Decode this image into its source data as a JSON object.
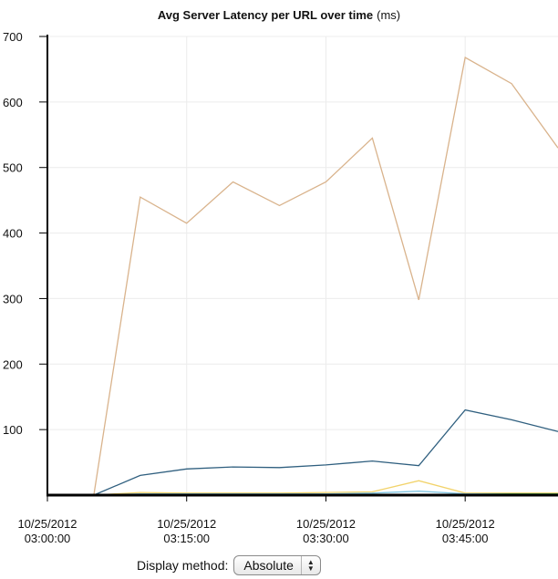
{
  "chart_data": {
    "type": "line",
    "title": "Avg Server Latency per URL over time",
    "title_unit": "(ms)",
    "xlabel": "",
    "ylabel": "",
    "ylim": [
      0,
      700
    ],
    "y_ticks": [
      100,
      200,
      300,
      400,
      500,
      600,
      700
    ],
    "x_ticks": [
      {
        "date": "10/25/2012",
        "time": "03:00:00"
      },
      {
        "date": "10/25/2012",
        "time": "03:15:00"
      },
      {
        "date": "10/25/2012",
        "time": "03:30:00"
      },
      {
        "date": "10/25/2012",
        "time": "03:45:00"
      }
    ],
    "x_start": "2012-10-25T03:00:00",
    "x_end": "2012-10-25T03:55:00",
    "grid": true,
    "x": [
      "03:05:00",
      "03:10:00",
      "03:15:00",
      "03:20:00",
      "03:25:00",
      "03:30:00",
      "03:35:00",
      "03:40:00",
      "03:45:00",
      "03:50:00",
      "03:55:00"
    ],
    "series": [
      {
        "color": "#d9b38c",
        "values": [
          0,
          455,
          415,
          478,
          442,
          478,
          545,
          298,
          668,
          628,
          530
        ]
      },
      {
        "color": "#2f5f7f",
        "values": [
          0,
          30,
          40,
          43,
          42,
          46,
          52,
          45,
          130,
          115,
          97
        ]
      },
      {
        "color": "#f2d36b",
        "values": [
          0,
          4,
          3,
          3,
          3,
          4,
          5,
          22,
          3,
          3,
          3
        ]
      },
      {
        "color": "#7fc4e0",
        "values": [
          0,
          2,
          2,
          2,
          2,
          2,
          3,
          6,
          2,
          2,
          2
        ]
      },
      {
        "color": "#5cb85c",
        "values": [
          0,
          1,
          1,
          1,
          1,
          1,
          1,
          1,
          1,
          2,
          2
        ]
      }
    ]
  },
  "controls": {
    "display_method_label": "Display method:",
    "display_method_value": "Absolute",
    "display_method_arrows": [
      "▲",
      "▼"
    ]
  }
}
